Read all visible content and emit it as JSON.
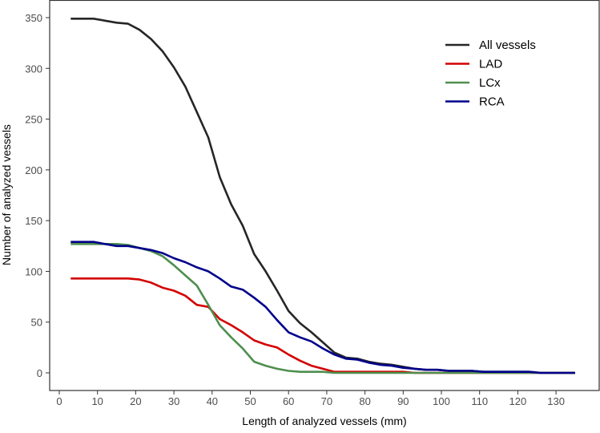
{
  "chart_data": {
    "type": "line",
    "title": "",
    "xlabel": "Length of analyzed vessels (mm)",
    "ylabel": "Number of analyzed vessels",
    "xlim": [
      -3,
      141
    ],
    "ylim": [
      -18,
      365
    ],
    "xticks": [
      0,
      10,
      20,
      30,
      40,
      50,
      60,
      70,
      80,
      90,
      100,
      110,
      120,
      130
    ],
    "yticks": [
      0,
      50,
      100,
      150,
      200,
      250,
      300,
      350
    ],
    "grid": false,
    "legend_position": "top-right",
    "x": [
      3,
      6,
      9,
      12,
      15,
      18,
      21,
      24,
      27,
      30,
      33,
      36,
      39,
      42,
      45,
      48,
      51,
      54,
      57,
      60,
      63,
      66,
      69,
      72,
      75,
      78,
      81,
      84,
      87,
      90,
      93,
      96,
      99,
      102,
      105,
      108,
      111,
      114,
      117,
      120,
      123,
      126,
      129,
      132,
      135
    ],
    "series": [
      {
        "name": "All vessels",
        "color": "#262626",
        "values": [
          349,
          349,
          349,
          347,
          345,
          344,
          338,
          329,
          317,
          301,
          282,
          257,
          232,
          193,
          166,
          145,
          117,
          100,
          81,
          61,
          49,
          40,
          30,
          20,
          15,
          14,
          11,
          9,
          8,
          6,
          4,
          3,
          3,
          2,
          2,
          2,
          1,
          1,
          1,
          1,
          1,
          0,
          0,
          0,
          0
        ]
      },
      {
        "name": "LAD",
        "color": "#d40000",
        "values": [
          93,
          93,
          93,
          93,
          93,
          93,
          92,
          89,
          84,
          81,
          76,
          67,
          65,
          53,
          47,
          40,
          32,
          28,
          25,
          18,
          12,
          7,
          4,
          1,
          1,
          1,
          1,
          1,
          1,
          1,
          0,
          0,
          0,
          0,
          0,
          0,
          0,
          0,
          0,
          0,
          0,
          0,
          0,
          0,
          0
        ]
      },
      {
        "name": "LCx",
        "color": "#4f8f4f",
        "values": [
          127,
          127,
          127,
          127,
          127,
          126,
          123,
          120,
          115,
          106,
          96,
          86,
          67,
          47,
          35,
          24,
          11,
          7,
          4,
          2,
          1,
          1,
          1,
          0,
          0,
          0,
          0,
          0,
          0,
          0,
          0,
          0,
          0,
          0,
          0,
          0,
          0,
          0,
          0,
          0,
          0,
          0,
          0,
          0,
          0
        ]
      },
      {
        "name": "RCA",
        "color": "#00008b",
        "values": [
          129,
          129,
          129,
          127,
          125,
          125,
          123,
          121,
          118,
          113,
          109,
          104,
          100,
          93,
          85,
          82,
          74,
          65,
          52,
          40,
          35,
          31,
          24,
          18,
          14,
          13,
          10,
          8,
          7,
          5,
          4,
          3,
          3,
          2,
          2,
          2,
          1,
          1,
          1,
          1,
          1,
          0,
          0,
          0,
          0
        ]
      }
    ]
  }
}
